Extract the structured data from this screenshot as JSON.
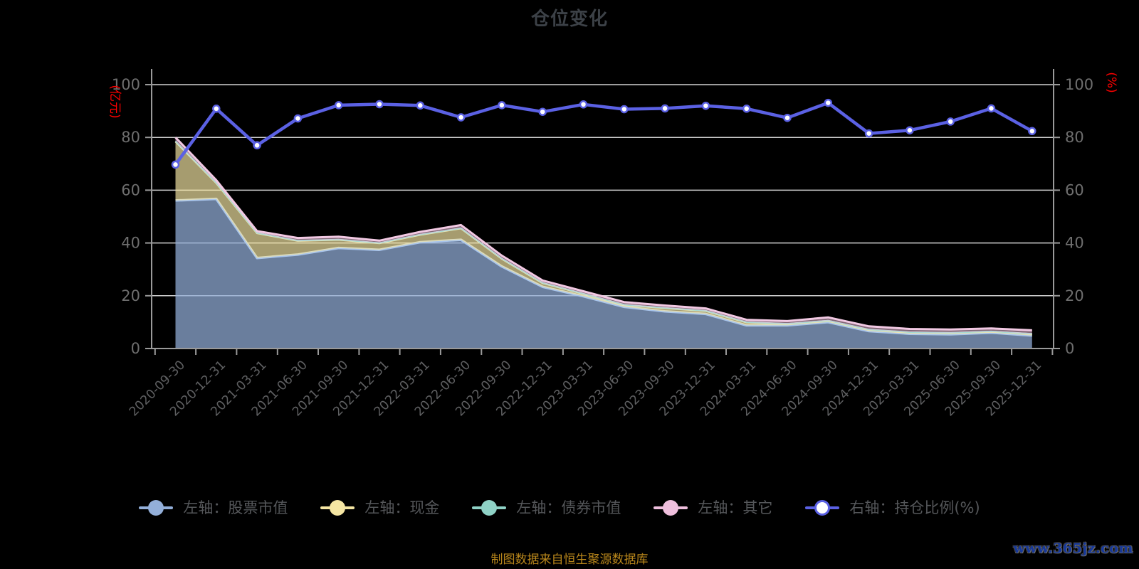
{
  "title": "仓位变化",
  "footer": "制图数据来自恒生聚源数据库",
  "watermark": "www.365jz.com",
  "colors": {
    "background": "#000000",
    "title_text": "#3C4147",
    "axis_line": "#9A9A9A",
    "grid_line": "#DCDCDC",
    "y_tick_label": "#6E6E6E",
    "x_tick_label": "#5E5F61",
    "axis_name_text": "#FF0000",
    "legend_text": "#55575A",
    "footer_text": "#B8861B",
    "watermark_text": "#16389B"
  },
  "legend": {
    "items": [
      {
        "label": "左轴：股票市值",
        "color": "#93AFD9",
        "dot_fill": "#93AFD9"
      },
      {
        "label": "左轴：现金",
        "color": "#F5E6A3",
        "dot_fill": "#F5E6A3"
      },
      {
        "label": "左轴：债券市值",
        "color": "#8FD2C6",
        "dot_fill": "#8FD2C6"
      },
      {
        "label": "左轴：其它",
        "color": "#EFBFDD",
        "dot_fill": "#EFBFDD"
      },
      {
        "label": "右轴：持仓比例(%)",
        "color": "#5B61E4",
        "dot_fill": "#FFFFFF"
      }
    ]
  },
  "chart_data": {
    "type": "area",
    "subtype": "stacked-area-with-right-axis-line",
    "title": "仓位变化",
    "grid": true,
    "legend_position": "bottom",
    "left_axis": {
      "name": "(亿元)",
      "range": [
        0,
        100
      ],
      "ticks": [
        0,
        20,
        40,
        60,
        80,
        100
      ]
    },
    "right_axis": {
      "name": "(%)",
      "range": [
        0,
        100
      ],
      "ticks": [
        0,
        20,
        40,
        60,
        80,
        100
      ]
    },
    "categories": [
      "2020-09-30",
      "2020-12-31",
      "2021-03-31",
      "2021-06-30",
      "2021-09-30",
      "2021-12-31",
      "2022-03-31",
      "2022-06-30",
      "2022-09-30",
      "2022-12-31",
      "2023-03-31",
      "2023-06-30",
      "2023-09-30",
      "2023-12-31",
      "2024-03-31",
      "2024-06-30",
      "2024-09-30",
      "2024-12-31",
      "2025-03-31",
      "2025-06-30",
      "2025-09-30",
      "2025-12-31"
    ],
    "stacked_series": [
      {
        "name": "左轴：股票市值",
        "axis": "left",
        "color": "#93AFD9",
        "border": "#A9C5EC",
        "fill_alpha": 0.72,
        "border_width": 3.5,
        "values": [
          56.1,
          56.7,
          34.3,
          35.6,
          38.1,
          37.4,
          40.3,
          41.2,
          31.1,
          23.4,
          19.8,
          15.8,
          14.1,
          13.1,
          8.8,
          8.8,
          10.0,
          6.6,
          5.6,
          5.4,
          6.0,
          4.9
        ]
      },
      {
        "name": "左轴：现金",
        "axis": "left",
        "color": "#F5E6A3",
        "border": "#F4E9B4",
        "fill_alpha": 0.68,
        "border_width": 2.5,
        "values": [
          22.3,
          6.0,
          9.4,
          5.2,
          3.1,
          2.5,
          2.8,
          4.3,
          2.9,
          1.4,
          0.9,
          0.7,
          1.2,
          1.1,
          1.1,
          0.5,
          0.5,
          0.5,
          0.5,
          0.5,
          0.4,
          0.6
        ]
      },
      {
        "name": "左轴：债券市值",
        "axis": "left",
        "color": "#8FD2C6",
        "border": "#A5DCD2",
        "fill_alpha": 0.6,
        "border_width": 2,
        "values": [
          0.2,
          0.1,
          0.1,
          0.1,
          0.1,
          0.1,
          0.1,
          0.1,
          0.1,
          0.1,
          0.1,
          0.1,
          0.1,
          0.1,
          0.1,
          0.1,
          0.1,
          0.1,
          0.1,
          0.1,
          0.1,
          0.1
        ]
      },
      {
        "name": "左轴：其它",
        "axis": "left",
        "color": "#EFBFDD",
        "border": "#F2C9E3",
        "fill_alpha": 0.55,
        "border_width": 3,
        "values": [
          1.4,
          1.0,
          0.7,
          1.0,
          1.1,
          0.9,
          1.0,
          1.2,
          1.1,
          0.9,
          0.9,
          1.0,
          0.9,
          0.9,
          0.9,
          1.0,
          1.2,
          1.2,
          1.2,
          1.2,
          1.1,
          1.3
        ]
      }
    ],
    "line_series": {
      "name": "右轴：持仓比例(%)",
      "axis": "right",
      "color": "#5B61E4",
      "marker_fill": "#FFFFFF",
      "line_width": 4.5,
      "marker_radius": 4.5,
      "values": [
        69.7,
        90.9,
        77.0,
        87.2,
        92.2,
        92.6,
        92.1,
        87.6,
        92.2,
        89.7,
        92.5,
        90.7,
        91.0,
        92.0,
        90.9,
        87.4,
        93.1,
        81.5,
        82.7,
        86.0,
        91.0,
        82.4
      ]
    }
  }
}
